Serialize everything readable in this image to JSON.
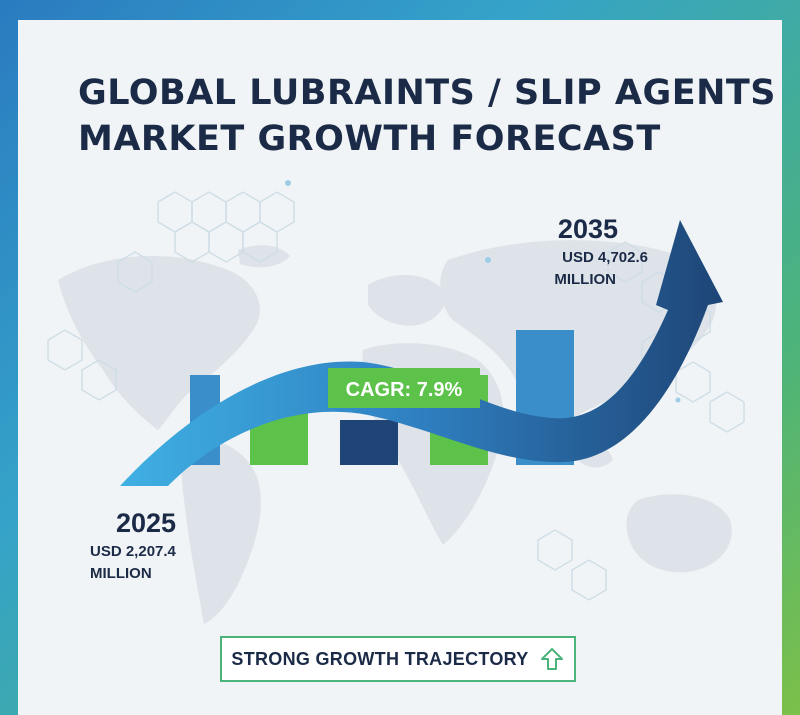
{
  "title": "GLOBAL LUBRAINTS / SLIP AGENTS\nMARKET GROWTH FORECAST",
  "chart_data": {
    "type": "bar",
    "categories": [
      "2025",
      "2035"
    ],
    "values": [
      2207.4,
      4702.6
    ],
    "unit": "USD MILLION",
    "start": {
      "year": "2025",
      "value_line": "USD 2,207.4",
      "unit_line": "MILLION"
    },
    "end": {
      "year": "2035",
      "value_line": "USD 4,702.6",
      "unit_line": "MILLION"
    },
    "cagr_label": "CAGR: 7.9%",
    "cagr_percent": 7.9,
    "decorative_bars": [
      {
        "color": "#3a8fcb",
        "level": 0.3
      },
      {
        "color": "#5cc24a",
        "level": 0.25
      },
      {
        "color": "#1e4576",
        "level": 0.15
      },
      {
        "color": "#5cc24a",
        "level": 0.3
      },
      {
        "color": "#3a8fcb",
        "level": 0.45
      }
    ]
  },
  "footer": {
    "label": "STRONG GROWTH TRAJECTORY",
    "icon": "up-arrow-icon"
  },
  "colors": {
    "navy": "#1b2b47",
    "arrow_light": "#3fb0e3",
    "arrow_dark": "#1e4576",
    "green": "#5cc24a",
    "blue": "#3a8fcb"
  }
}
